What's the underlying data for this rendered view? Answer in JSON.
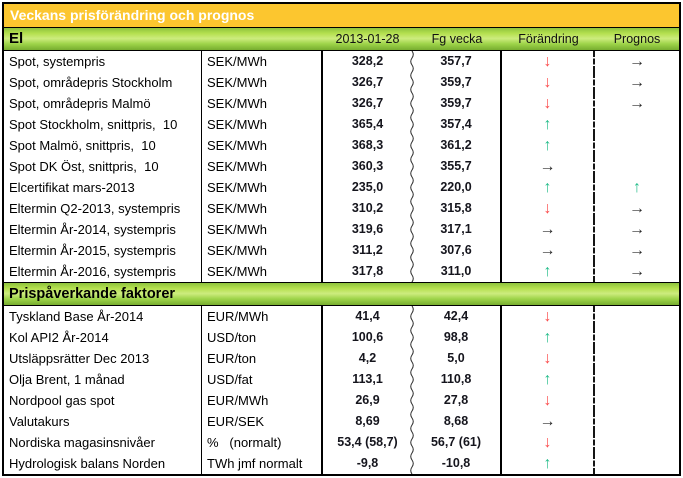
{
  "title": "Veckans prisförändring och prognos",
  "columns": {
    "date": "2013-01-28",
    "prev": "Fg vecka",
    "change": "Förändring",
    "forecast": "Prognos"
  },
  "colors": {
    "title_bar_bg": "#fcc62f",
    "section_bar_green": "#9ed44a",
    "arrow_down": "#fb4b4b",
    "arrow_up": "#25bd8b",
    "arrow_flat": "#2b2b2b"
  },
  "icons": {
    "down": "down-arrow-icon",
    "up": "up-arrow-icon",
    "flat": "right-arrow-icon"
  },
  "sections": [
    {
      "label": "El",
      "rows": [
        {
          "name": "Spot, systempris",
          "unit": "SEK/MWh",
          "current": "328,2",
          "prev": "357,7",
          "change": "down",
          "forecast": "flat"
        },
        {
          "name": "Spot, områdepris Stockholm",
          "unit": "SEK/MWh",
          "current": "326,7",
          "prev": "359,7",
          "change": "down",
          "forecast": "flat"
        },
        {
          "name": "Spot, områdepris Malmö",
          "unit": "SEK/MWh",
          "current": "326,7",
          "prev": "359,7",
          "change": "down",
          "forecast": "flat"
        },
        {
          "name": "Spot Stockholm, snittpris,  10",
          "unit": "SEK/MWh",
          "current": "365,4",
          "prev": "357,4",
          "change": "up",
          "forecast": ""
        },
        {
          "name": "Spot Malmö, snittpris,  10",
          "unit": "SEK/MWh",
          "current": "368,3",
          "prev": "361,2",
          "change": "up",
          "forecast": ""
        },
        {
          "name": "Spot DK Öst, snittpris,  10",
          "unit": "SEK/MWh",
          "current": "360,3",
          "prev": "355,7",
          "change": "flat",
          "forecast": ""
        },
        {
          "name": "Elcertifikat mars-2013",
          "unit": "SEK/MWh",
          "current": "235,0",
          "prev": "220,0",
          "change": "up",
          "forecast": "up"
        },
        {
          "name": "Eltermin Q2-2013, systempris",
          "unit": "SEK/MWh",
          "current": "310,2",
          "prev": "315,8",
          "change": "down",
          "forecast": "flat"
        },
        {
          "name": "Eltermin År-2014, systempris",
          "unit": "SEK/MWh",
          "current": "319,6",
          "prev": "317,1",
          "change": "flat",
          "forecast": "flat"
        },
        {
          "name": "Eltermin År-2015, systempris",
          "unit": "SEK/MWh",
          "current": "311,2",
          "prev": "307,6",
          "change": "flat",
          "forecast": "flat"
        },
        {
          "name": "Eltermin År-2016, systempris",
          "unit": "SEK/MWh",
          "current": "317,8",
          "prev": "311,0",
          "change": "up",
          "forecast": "flat"
        }
      ]
    },
    {
      "label": "Prispåverkande faktorer",
      "rows": [
        {
          "name": "Tyskland Base År-2014",
          "unit": "EUR/MWh",
          "current": "41,4",
          "prev": "42,4",
          "change": "down",
          "forecast": ""
        },
        {
          "name": "Kol API2 År-2014",
          "unit": "USD/ton",
          "current": "100,6",
          "prev": "98,8",
          "change": "up",
          "forecast": ""
        },
        {
          "name": "Utsläppsrätter Dec 2013",
          "unit": "EUR/ton",
          "current": "4,2",
          "prev": "5,0",
          "change": "down",
          "forecast": ""
        },
        {
          "name": "Olja Brent, 1 månad",
          "unit": "USD/fat",
          "current": "113,1",
          "prev": "110,8",
          "change": "up",
          "forecast": ""
        },
        {
          "name": "Nordpool gas spot",
          "unit": "EUR/MWh",
          "current": "26,9",
          "prev": "27,8",
          "change": "down",
          "forecast": ""
        },
        {
          "name": "Valutakurs",
          "unit": "EUR/SEK",
          "current": "8,69",
          "prev": "8,68",
          "change": "flat",
          "forecast": ""
        },
        {
          "name": "Nordiska magasinsnivåer",
          "unit": "%   (normalt)",
          "current": "53,4 (58,7)",
          "prev": "56,7 (61)",
          "change": "down",
          "forecast": ""
        },
        {
          "name": "Hydrologisk balans Norden",
          "unit": "TWh jmf normalt",
          "current": "-9,8",
          "prev": "-10,8",
          "change": "up",
          "forecast": ""
        }
      ]
    }
  ]
}
